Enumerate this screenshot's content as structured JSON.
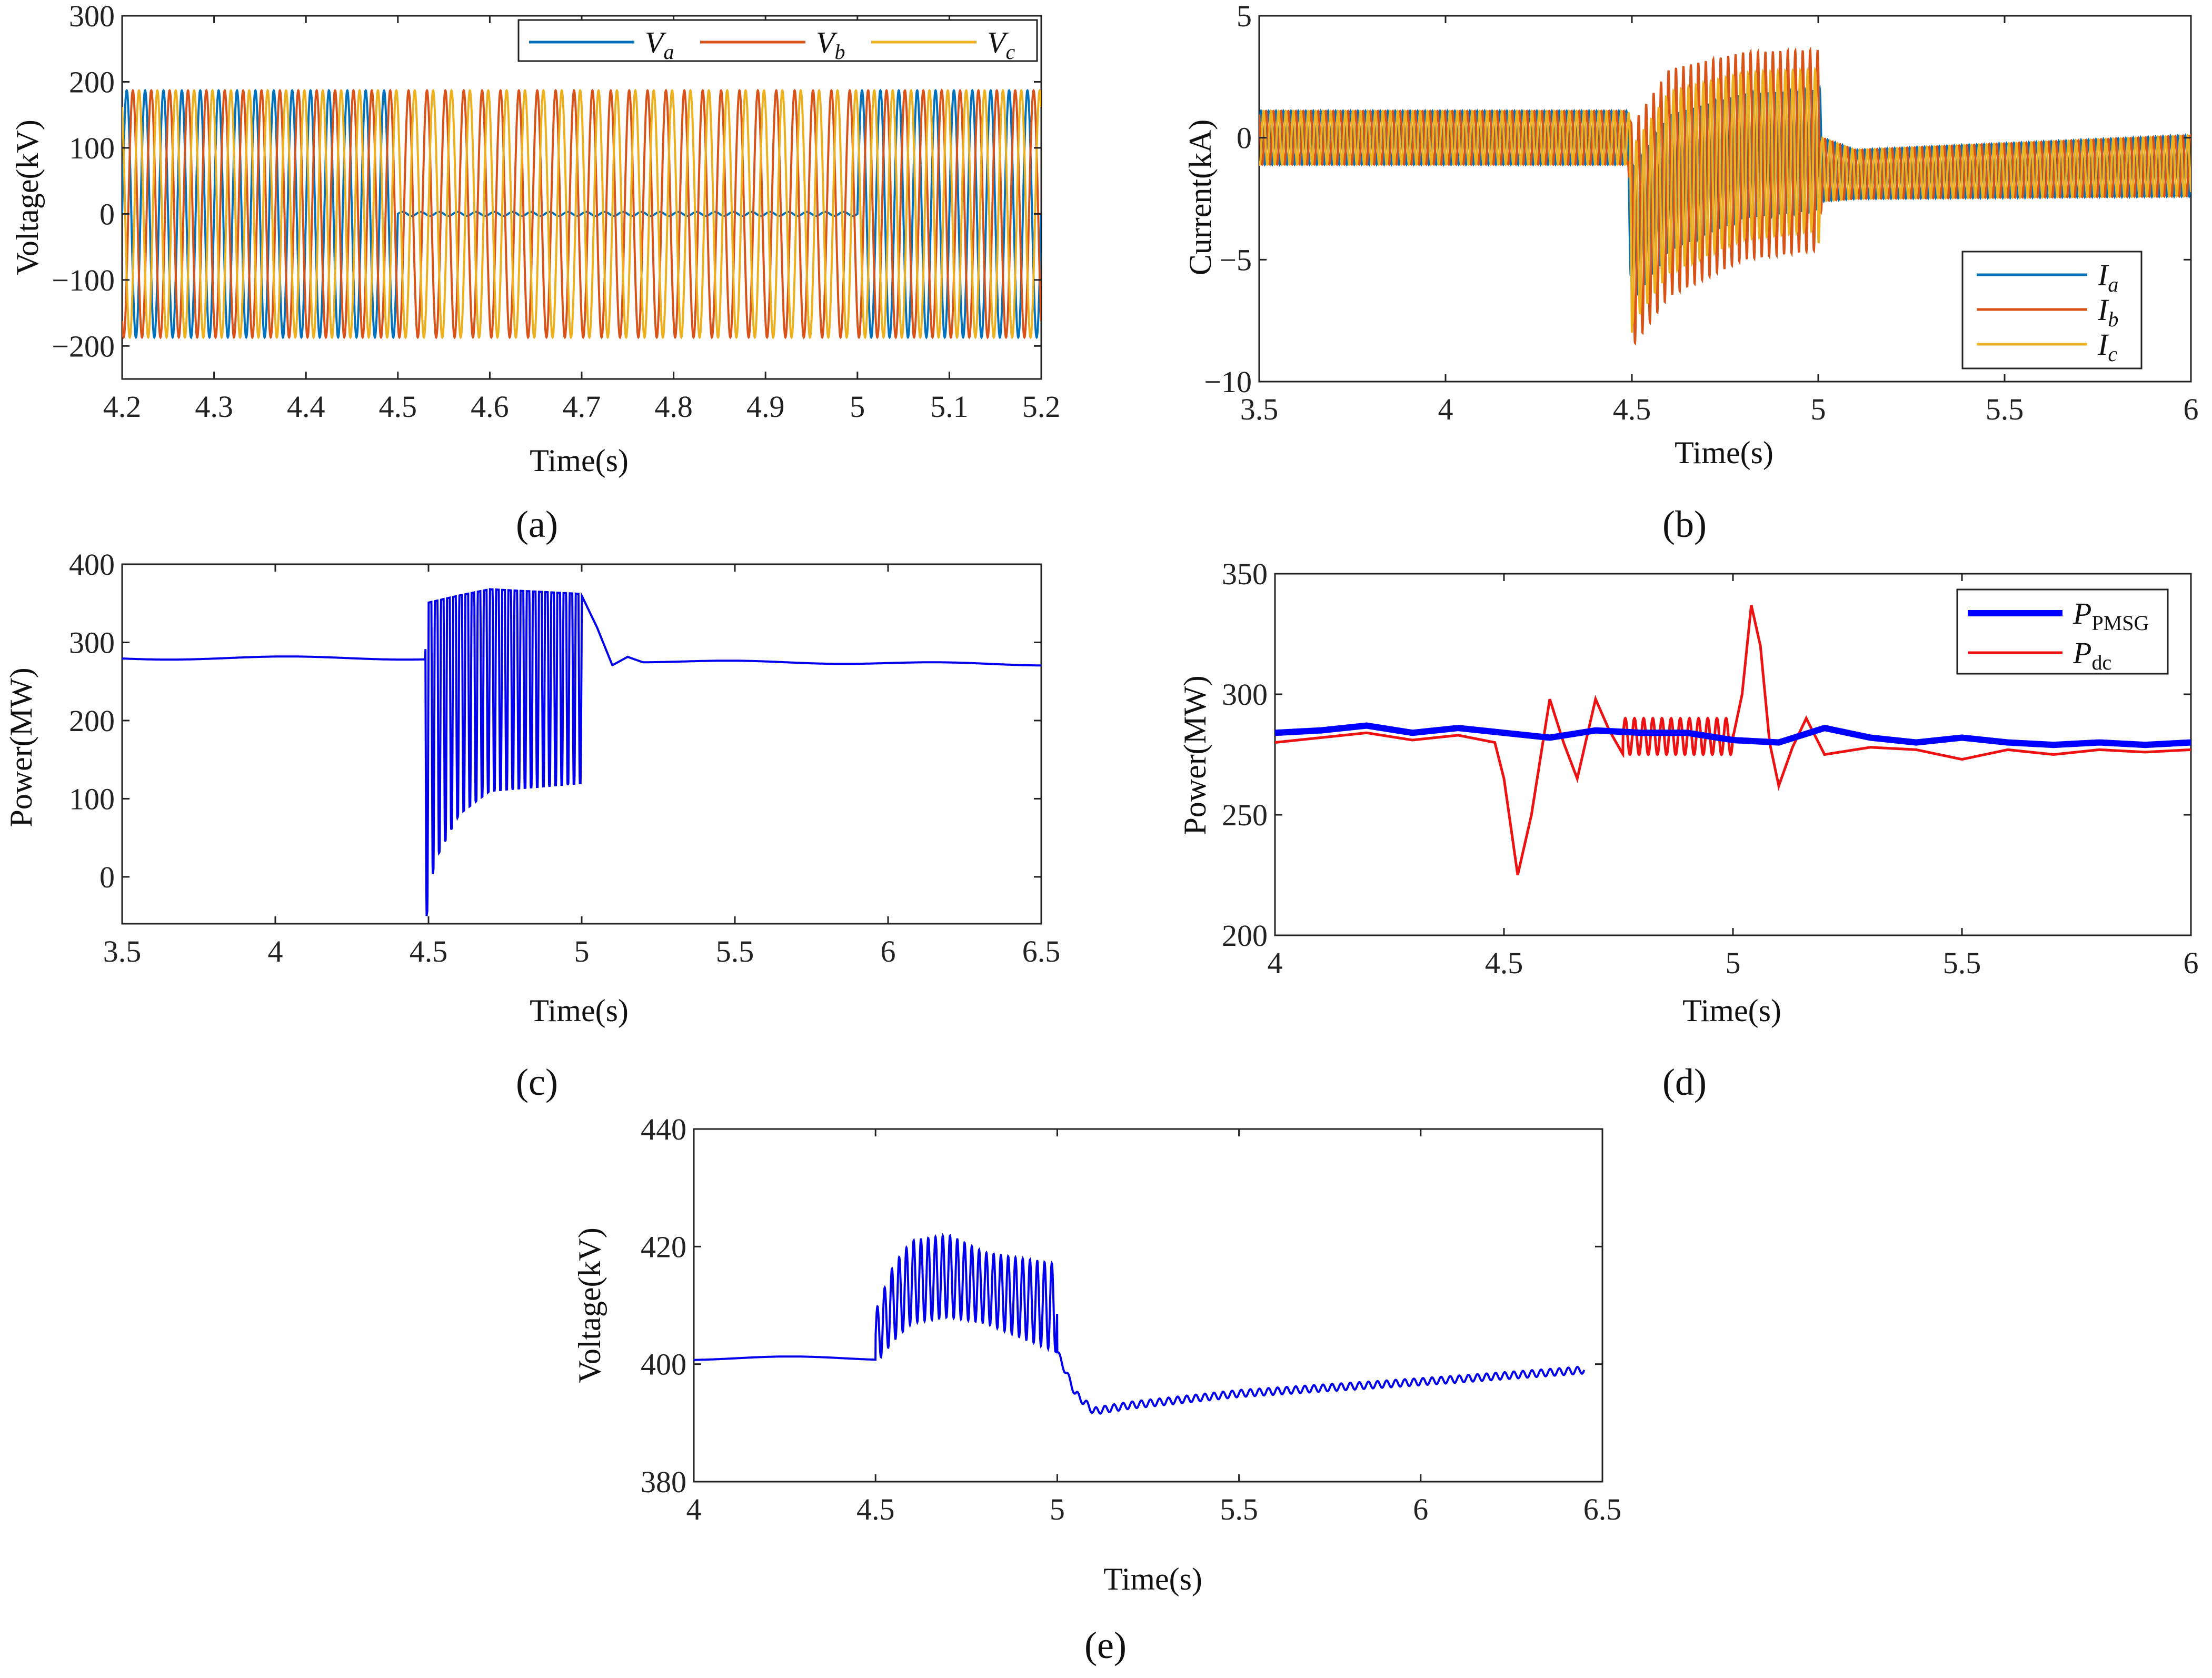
{
  "figure": {
    "captions": [
      "(a)",
      "(b)",
      "(c)",
      "(d)",
      "(e)"
    ]
  },
  "chart_data": [
    {
      "id": "a",
      "type": "line",
      "title": "",
      "xlabel": "Time(s)",
      "ylabel": "Voltage(kV)",
      "xlim": [
        4.2,
        5.2
      ],
      "ylim": [
        -250,
        300
      ],
      "xticks": [
        "4.2",
        "4.3",
        "4.4",
        "4.5",
        "4.6",
        "4.7",
        "4.8",
        "4.9",
        "5",
        "5.1",
        "5.2"
      ],
      "yticks": [
        "300",
        "200",
        "100",
        "0",
        "−100",
        "−200"
      ],
      "legend": {
        "position": "top-right",
        "layout": "horizontal"
      },
      "series": [
        {
          "name": "V",
          "sub": "a",
          "color": "#0072BD",
          "amplitude_kV": 187,
          "frequency_Hz": 50,
          "phase_deg": 0,
          "fault_window_s": [
            4.5,
            5.0
          ],
          "fault_amplitude_kV": 3
        },
        {
          "name": "V",
          "sub": "b",
          "color": "#D95319",
          "amplitude_kV": 187,
          "frequency_Hz": 50,
          "phase_deg": -120,
          "fault_window_s": [
            4.5,
            5.0
          ],
          "fault_amplitude_kV": 187
        },
        {
          "name": "V",
          "sub": "c",
          "color": "#EDB120",
          "amplitude_kV": 187,
          "frequency_Hz": 50,
          "phase_deg": 120,
          "fault_window_s": [
            4.5,
            5.0
          ],
          "fault_amplitude_kV": 187
        }
      ]
    },
    {
      "id": "b",
      "type": "line",
      "title": "",
      "xlabel": "Time(s)",
      "ylabel": "Current(kA)",
      "xlim": [
        3.5,
        6
      ],
      "ylim": [
        -10,
        5
      ],
      "xticks": [
        "3.5",
        "4",
        "4.5",
        "5",
        "5.5",
        "6"
      ],
      "yticks": [
        "5",
        "0",
        "−5",
        "−10"
      ],
      "legend": {
        "position": "bottom-right",
        "layout": "vertical"
      },
      "envelope_kA": [
        {
          "t": 3.5,
          "upper": 1.1,
          "lower": -1.1
        },
        {
          "t": 4.49,
          "upper": 1.1,
          "lower": -1.1
        },
        {
          "t": 4.5,
          "upper": 0.5,
          "lower": -8.6
        },
        {
          "t": 4.6,
          "upper": 2.8,
          "lower": -6.5
        },
        {
          "t": 4.8,
          "upper": 3.5,
          "lower": -5.0
        },
        {
          "t": 5.0,
          "upper": 3.6,
          "lower": -4.6
        },
        {
          "t": 5.01,
          "upper": 0.0,
          "lower": -2.6
        },
        {
          "t": 5.1,
          "upper": -0.5,
          "lower": -2.5
        },
        {
          "t": 6.0,
          "upper": 0.1,
          "lower": -2.4
        }
      ],
      "series": [
        {
          "name": "I",
          "sub": "a",
          "color": "#0072BD"
        },
        {
          "name": "I",
          "sub": "b",
          "color": "#D95319"
        },
        {
          "name": "I",
          "sub": "c",
          "color": "#EDB120"
        }
      ]
    },
    {
      "id": "c",
      "type": "line",
      "title": "",
      "xlabel": "Time(s)",
      "ylabel": "Power(MW)",
      "xlim": [
        3.5,
        6.5
      ],
      "ylim": [
        -60,
        400
      ],
      "xticks": [
        "3.5",
        "4",
        "4.5",
        "5",
        "5.5",
        "6",
        "6.5"
      ],
      "yticks": [
        "400",
        "300",
        "200",
        "100",
        "0"
      ],
      "series": [
        {
          "name": "Power",
          "color": "#0000EE",
          "steady_MW": 280,
          "fault_window_s": [
            4.49,
            5.0
          ],
          "fault_upper_MW": [
            [
              4.49,
              350
            ],
            [
              4.6,
              360
            ],
            [
              4.7,
              368
            ],
            [
              5.0,
              362
            ]
          ],
          "fault_lower_MW": [
            [
              4.49,
              -60
            ],
            [
              4.52,
              20
            ],
            [
              4.6,
              80
            ],
            [
              4.7,
              110
            ],
            [
              5.0,
              120
            ]
          ],
          "recovery_MW": [
            [
              5.0,
              360
            ],
            [
              5.05,
              320
            ],
            [
              5.1,
              272
            ],
            [
              5.15,
              283
            ],
            [
              5.2,
              276
            ],
            [
              6.5,
              272
            ]
          ]
        }
      ]
    },
    {
      "id": "d",
      "type": "line",
      "title": "",
      "xlabel": "Time(s)",
      "ylabel": "Power(MW)",
      "xlim": [
        4,
        6
      ],
      "ylim": [
        200,
        350
      ],
      "xticks": [
        "4",
        "4.5",
        "5",
        "5.5",
        "6"
      ],
      "yticks": [
        "350",
        "300",
        "250",
        "200"
      ],
      "legend": {
        "position": "top-right",
        "layout": "vertical"
      },
      "series": [
        {
          "name": "P",
          "sub": "PMSG",
          "color": "#0000FF",
          "points": [
            [
              4.0,
              284
            ],
            [
              4.1,
              285
            ],
            [
              4.2,
              287
            ],
            [
              4.3,
              284
            ],
            [
              4.4,
              286
            ],
            [
              4.5,
              284
            ],
            [
              4.6,
              282
            ],
            [
              4.7,
              285
            ],
            [
              4.8,
              284
            ],
            [
              4.9,
              284
            ],
            [
              5.0,
              281
            ],
            [
              5.1,
              280
            ],
            [
              5.2,
              286
            ],
            [
              5.3,
              282
            ],
            [
              5.4,
              280
            ],
            [
              5.5,
              282
            ],
            [
              5.6,
              280
            ],
            [
              5.7,
              279
            ],
            [
              5.8,
              280
            ],
            [
              5.9,
              279
            ],
            [
              6.0,
              280
            ]
          ]
        },
        {
          "name": "P",
          "sub": "dc",
          "color": "#EE1111",
          "points": [
            [
              4.0,
              280
            ],
            [
              4.1,
              282
            ],
            [
              4.2,
              284
            ],
            [
              4.3,
              281
            ],
            [
              4.4,
              283
            ],
            [
              4.48,
              280
            ],
            [
              4.5,
              265
            ],
            [
              4.53,
              225
            ],
            [
              4.56,
              250
            ],
            [
              4.6,
              298
            ],
            [
              4.63,
              280
            ],
            [
              4.66,
              265
            ],
            [
              4.7,
              298
            ],
            [
              4.73,
              285
            ],
            [
              4.76,
              275
            ],
            [
              4.8,
              282
            ],
            [
              4.9,
              280
            ],
            [
              5.0,
              282
            ],
            [
              5.02,
              300
            ],
            [
              5.04,
              337
            ],
            [
              5.06,
              320
            ],
            [
              5.08,
              280
            ],
            [
              5.1,
              262
            ],
            [
              5.13,
              278
            ],
            [
              5.16,
              290
            ],
            [
              5.2,
              275
            ],
            [
              5.3,
              278
            ],
            [
              5.4,
              277
            ],
            [
              5.5,
              273
            ],
            [
              5.6,
              277
            ],
            [
              5.7,
              275
            ],
            [
              5.8,
              277
            ],
            [
              5.9,
              276
            ],
            [
              6.0,
              277
            ]
          ],
          "oscillation_window_s": [
            4.76,
            5.0
          ],
          "oscillation_band_MW": [
            275,
            290
          ]
        }
      ]
    },
    {
      "id": "e",
      "type": "line",
      "title": "",
      "xlabel": "Time(s)",
      "ylabel": "Voltage(kV)",
      "xlim": [
        4,
        6.5
      ],
      "ylim": [
        380,
        440
      ],
      "xticks": [
        "4",
        "4.5",
        "5",
        "5.5",
        "6",
        "6.5"
      ],
      "yticks": [
        "440",
        "420",
        "400",
        "380"
      ],
      "series": [
        {
          "name": "Voltage",
          "color": "#0000EE",
          "steady_kV": 401,
          "fault_upper_kV": [
            [
              4.5,
              409
            ],
            [
              4.55,
              417
            ],
            [
              4.6,
              421
            ],
            [
              4.7,
              422
            ],
            [
              4.8,
              419
            ],
            [
              5.0,
              417
            ]
          ],
          "fault_lower_kV": [
            [
              4.5,
              400
            ],
            [
              4.55,
              404
            ],
            [
              4.6,
              407
            ],
            [
              4.7,
              408
            ],
            [
              4.8,
              407
            ],
            [
              5.0,
              402
            ]
          ],
          "recovery_kV": [
            [
              5.0,
              402
            ],
            [
              5.05,
              395
            ],
            [
              5.1,
              392
            ],
            [
              5.2,
              393
            ],
            [
              5.5,
              395
            ],
            [
              6.0,
              397
            ],
            [
              6.45,
              399
            ]
          ]
        }
      ]
    }
  ]
}
